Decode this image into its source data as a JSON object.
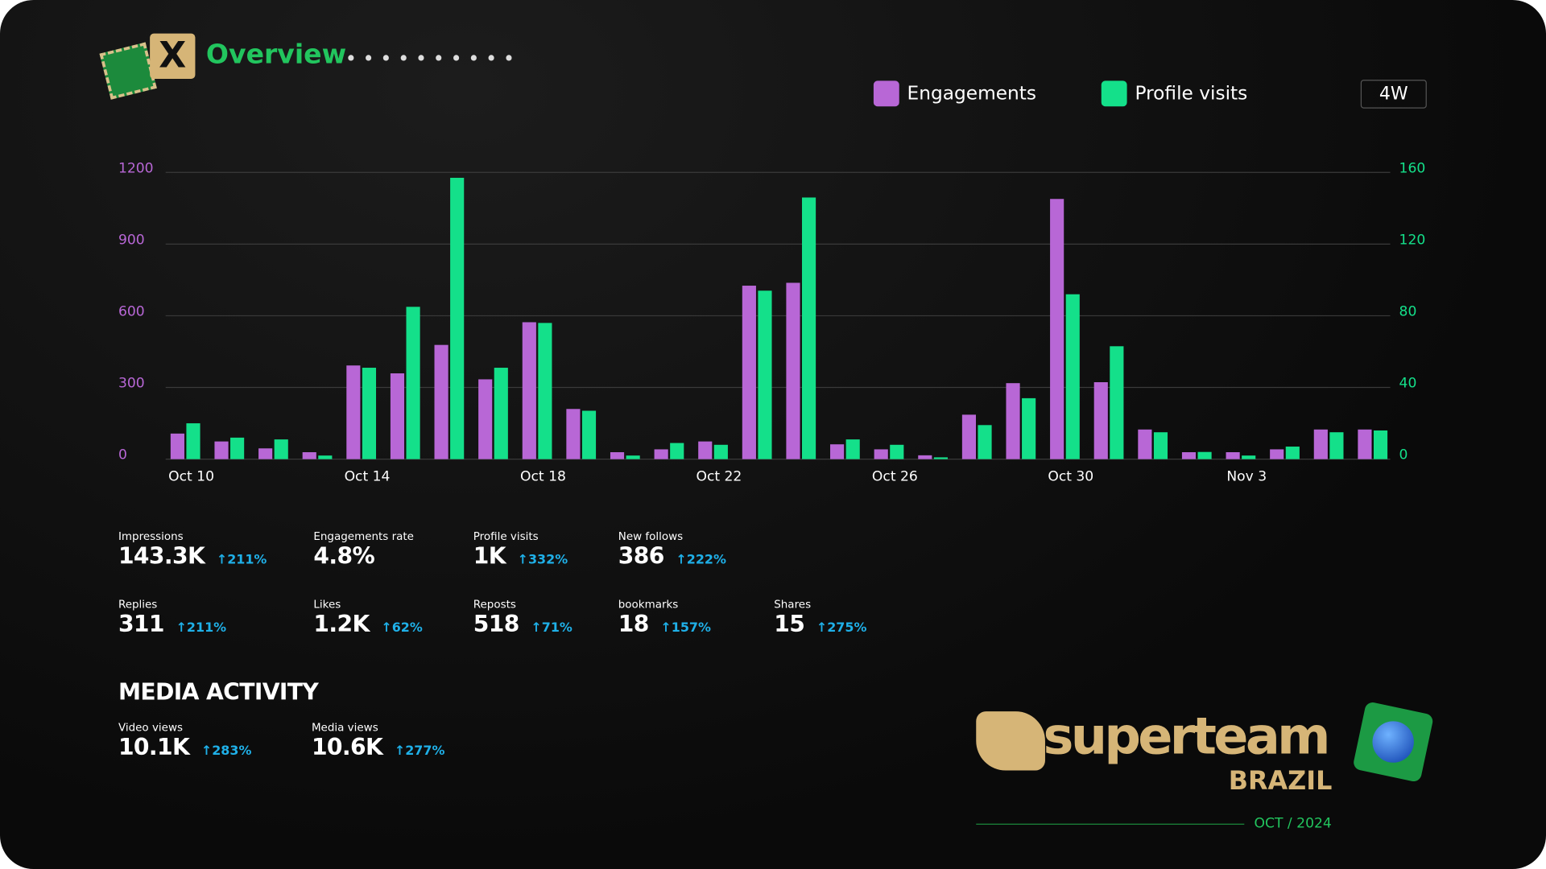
{
  "header": {
    "title": "Overview",
    "logo": "X",
    "range": "4W"
  },
  "chart_data": {
    "type": "bar",
    "categories": [
      "Oct 10",
      null,
      null,
      null,
      "Oct 14",
      null,
      null,
      null,
      "Oct 18",
      null,
      null,
      null,
      "Oct 22",
      null,
      null,
      null,
      "Oct 26",
      null,
      null,
      null,
      "Oct 30",
      null,
      null,
      null,
      "Nov 3",
      null,
      null,
      null
    ],
    "series": [
      {
        "name": "Engagements",
        "color": "#b867d6",
        "values": [
          107,
          74,
          45,
          29,
          392,
          359,
          478,
          334,
          573,
          210,
          29,
          41,
          74,
          726,
          738,
          62,
          41,
          16,
          186,
          318,
          1089,
          322,
          124,
          29,
          29,
          41,
          124,
          124
        ]
      },
      {
        "name": "Profile visits",
        "color": "#14e08a",
        "axis": "y2",
        "values": [
          20,
          12,
          11,
          2,
          51,
          85,
          157,
          51,
          76,
          27,
          2,
          9,
          8,
          94,
          146,
          11,
          8,
          1,
          19,
          34,
          92,
          63,
          15,
          4,
          2,
          7,
          15,
          16
        ]
      }
    ],
    "ylim": [
      0,
      1200
    ],
    "yticks": [
      0,
      300,
      600,
      900,
      1200
    ],
    "y2lim": [
      0,
      160
    ],
    "y2ticks": [
      0,
      40,
      80,
      120,
      160
    ],
    "grid": true,
    "legend": "top"
  },
  "stats": {
    "rows": [
      [
        {
          "label": "Impressions",
          "value": "143.3K",
          "change": "↑211%"
        },
        {
          "label": "Engagements rate",
          "value": "4.8%"
        },
        {
          "label": "Profile visits",
          "value": "1K",
          "change": "↑332%"
        },
        {
          "label": "New follows",
          "value": "386",
          "change": "↑222%"
        }
      ],
      [
        {
          "label": "Replies",
          "value": "311",
          "change": "↑211%"
        },
        {
          "label": "Likes",
          "value": "1.2K",
          "change": "↑62%"
        },
        {
          "label": "Reposts",
          "value": "518",
          "change": "↑71%"
        },
        {
          "label": "bookmarks",
          "value": "18",
          "change": "↑157%"
        },
        {
          "label": "Shares",
          "value": "15",
          "change": "↑275%"
        }
      ]
    ]
  },
  "media": {
    "title": "MEDIA ACTIVITY",
    "items": [
      {
        "label": "Video views",
        "value": "10.1K",
        "change": "↑283%"
      },
      {
        "label": "Media views",
        "value": "10.6K",
        "change": "↑277%"
      }
    ]
  },
  "brand": {
    "name": "superteam",
    "country": "BRAZIL",
    "date": "OCT / 2024"
  }
}
